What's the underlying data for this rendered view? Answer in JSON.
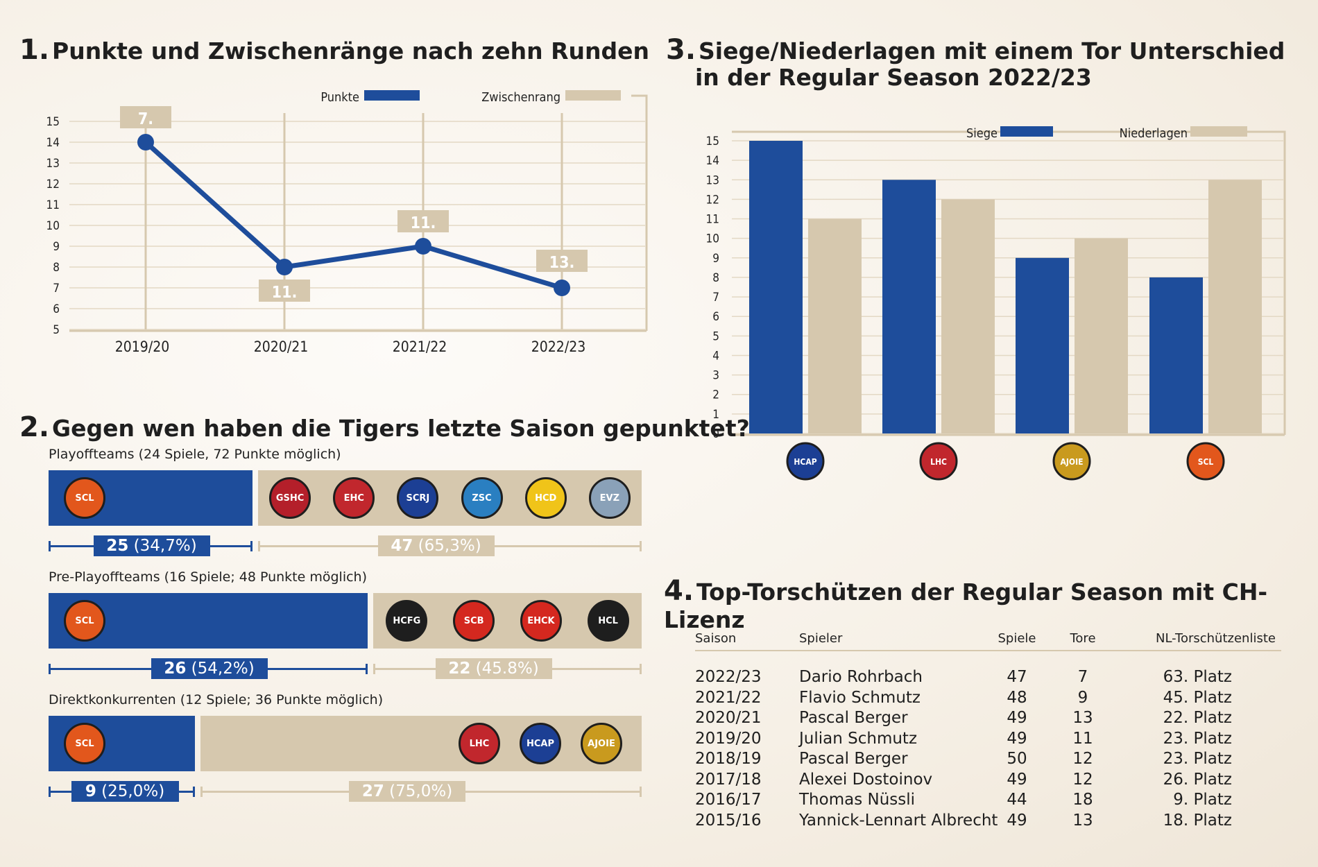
{
  "section1": {
    "number": "1.",
    "title": "Punkte und Zwischenränge nach zehn Runden",
    "chart_data": {
      "type": "line",
      "x": [
        "2019/20",
        "2020/21",
        "2021/22",
        "2022/23"
      ],
      "series": [
        {
          "name": "Punkte",
          "values": [
            14,
            8,
            9,
            7
          ],
          "color": "#1e4d9b"
        },
        {
          "name": "Zwischenrang",
          "labels": [
            "7.",
            "11.",
            "11.",
            "13."
          ],
          "color": "#d6c8ae"
        }
      ],
      "yticks": [
        5,
        6,
        7,
        8,
        9,
        10,
        11,
        12,
        13,
        14,
        15
      ],
      "ylim": [
        5,
        15
      ],
      "grid": true,
      "legend": "top-right"
    }
  },
  "section2": {
    "number": "2.",
    "title": "Gegen wen haben die Tigers letzte Saison gepunktet?",
    "groups": [
      {
        "label": "Playoffteams (24 Spiele, 72 Punkte möglich)",
        "tigers_points": "25",
        "tigers_pct": "(34,7%)",
        "tigers_share": 0.347,
        "opp_points": "47",
        "opp_pct": "(65,3%)",
        "logos": [
          {
            "icon": "geneve-servette-logo",
            "text": "GSHC",
            "color": "#b41f2a"
          },
          {
            "icon": "ehc-biel-logo",
            "text": "EHC",
            "color": "#c1272d"
          },
          {
            "icon": "rapperswil-lakers-logo",
            "text": "SCRJ",
            "color": "#1c3f94"
          },
          {
            "icon": "zsc-lions-logo",
            "text": "ZSC",
            "color": "#2a7fc1"
          },
          {
            "icon": "hc-davos-logo",
            "text": "HCD",
            "color": "#f0c419"
          },
          {
            "icon": "ev-zug-logo",
            "text": "EVZ",
            "color": "#8aa1b8"
          }
        ]
      },
      {
        "label": "Pre-Playoffteams (16 Spiele; 48 Punkte möglich)",
        "tigers_points": "26",
        "tigers_pct": "(54,2%)",
        "tigers_share": 0.542,
        "opp_points": "22",
        "opp_pct": "(45.8%)",
        "logos": [
          {
            "icon": "fribourg-gotteron-logo",
            "text": "HCFG",
            "color": "#1e1e1e"
          },
          {
            "icon": "sc-bern-logo",
            "text": "SCB",
            "color": "#d4281f"
          },
          {
            "icon": "ehc-kloten-logo",
            "text": "EHCK",
            "color": "#d4281f"
          },
          {
            "icon": "hc-lugano-logo",
            "text": "HCL",
            "color": "#1e1e1e"
          }
        ]
      },
      {
        "label": "Direktkonkurrenten (12 Spiele; 36 Punkte möglich)",
        "tigers_points": "9",
        "tigers_pct": "(25,0%)",
        "tigers_share": 0.25,
        "opp_points": "27",
        "opp_pct": "(75,0%)",
        "logos": [
          {
            "icon": "lausanne-hc-logo",
            "text": "LHC",
            "color": "#c1272d"
          },
          {
            "icon": "hc-ambri-piotta-logo",
            "text": "HCAP",
            "color": "#1c3f94"
          },
          {
            "icon": "hc-ajoie-logo",
            "text": "AJOIE",
            "color": "#c99a1e"
          }
        ]
      }
    ]
  },
  "section3": {
    "number": "3.",
    "title_line1": "Siege/Niederlagen mit einem Tor Unterschied",
    "title_line2": "in der Regular Season 2022/23",
    "chart_data": {
      "type": "bar",
      "categories": [
        "hc-ambri-piotta-logo",
        "lausanne-hc-logo",
        "hc-ajoie-logo",
        "scl-tigers-logo"
      ],
      "series": [
        {
          "name": "Siege",
          "values": [
            15,
            13,
            9,
            8
          ],
          "color": "#1e4d9b"
        },
        {
          "name": "Niederlagen",
          "values": [
            11,
            12,
            10,
            13
          ],
          "color": "#d6c8ae"
        }
      ],
      "yticks": [
        0,
        1,
        2,
        3,
        4,
        5,
        6,
        7,
        8,
        9,
        10,
        11,
        12,
        13,
        14,
        15
      ],
      "ylim": [
        0,
        15
      ],
      "grid": true,
      "legend": "top-right"
    }
  },
  "section4": {
    "number": "4.",
    "title": "Top-Torschützen der Regular Season mit CH-Lizenz",
    "headers": [
      "Saison",
      "Spieler",
      "Spiele",
      "Tore",
      "NL-Torschützenliste"
    ],
    "rows": [
      [
        "2022/23",
        "Dario Rohrbach",
        "47",
        "7",
        "63. Platz"
      ],
      [
        "2021/22",
        "Flavio Schmutz",
        "48",
        "9",
        "45. Platz"
      ],
      [
        "2020/21",
        "Pascal Berger",
        "49",
        "13",
        "22. Platz"
      ],
      [
        "2019/20",
        "Julian Schmutz",
        "49",
        "11",
        "23. Platz"
      ],
      [
        "2018/19",
        "Pascal Berger",
        "50",
        "12",
        "23. Platz"
      ],
      [
        "2017/18",
        "Alexei Dostoinov",
        "49",
        "12",
        "26. Platz"
      ],
      [
        "2016/17",
        "Thomas Nüssli",
        "44",
        "18",
        "9. Platz"
      ],
      [
        "2015/16",
        "Yannick-Lennart Albrecht",
        "49",
        "13",
        "18. Platz"
      ]
    ]
  }
}
